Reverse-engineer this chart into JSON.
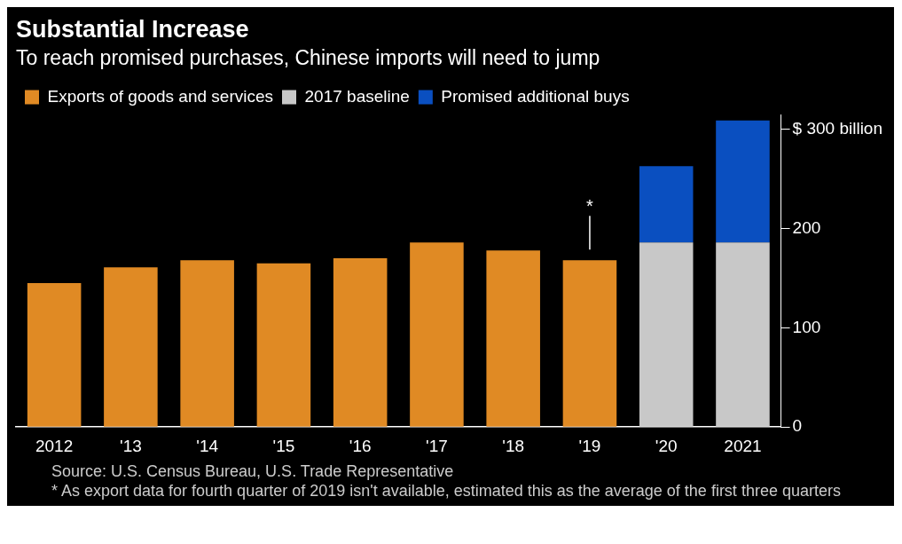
{
  "chart_data": {
    "type": "bar",
    "title": "Substantial Increase",
    "subtitle": "To reach promised purchases, Chinese imports will need to jump",
    "categories": [
      "2012",
      "'13",
      "'14",
      "'15",
      "'16",
      "'17",
      "'18",
      "'19",
      "'20",
      "2021"
    ],
    "series": [
      {
        "name": "Exports of goods and services",
        "color": "#e08a24",
        "values": [
          145,
          161,
          168,
          165,
          170,
          186,
          178,
          168,
          null,
          null
        ]
      },
      {
        "name": "2017 baseline",
        "color": "#c8c8c8",
        "values": [
          null,
          null,
          null,
          null,
          null,
          null,
          null,
          null,
          186,
          186
        ]
      },
      {
        "name": "Promised additional buys",
        "color": "#0a4fc0",
        "values": [
          null,
          null,
          null,
          null,
          null,
          null,
          null,
          null,
          77,
          123
        ]
      }
    ],
    "stacked": true,
    "ylim": [
      0,
      315
    ],
    "yticks": [
      0,
      100,
      200,
      {
        "value": 300,
        "label": "$ 300 billion"
      }
    ],
    "grid": false,
    "legend": "top left",
    "annotations": [
      {
        "text": "*",
        "x": "'19",
        "y": 168
      },
      "Source: U.S. Census Bureau, U.S. Trade Representative",
      "* As export data for fourth quarter of 2019 isn't available, estimated this as the average of the first three quarters"
    ]
  }
}
